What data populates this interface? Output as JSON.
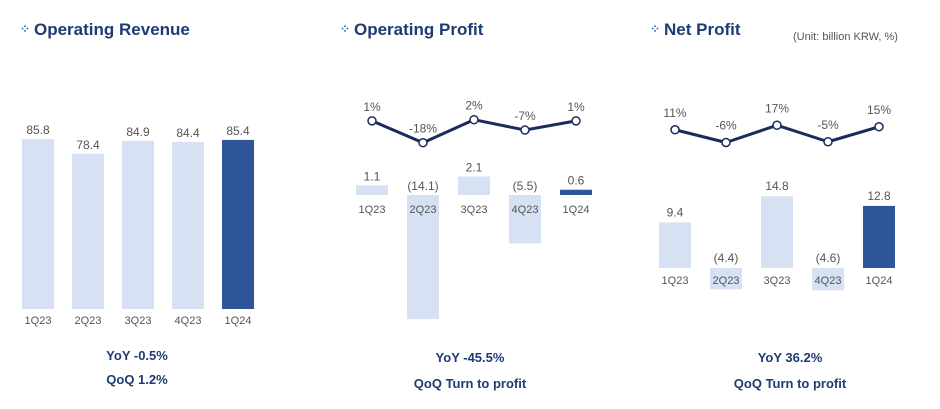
{
  "unit_note": "(Unit: billion KRW, %)",
  "panels": [
    {
      "title": "Operating Revenue",
      "summary": [
        "YoY  -0.5%",
        "QoQ  1.2%"
      ]
    },
    {
      "title": "Operating Profit",
      "summary": [
        "YoY -45.5%",
        "QoQ Turn to profit"
      ]
    },
    {
      "title": "Net Profit",
      "summary": [
        "YoY 36.2%",
        "QoQ  Turn to profit"
      ]
    }
  ],
  "colors": {
    "bar_light": "#d6e1f3",
    "bar_dark": "#2e5597",
    "line": "#1a2c5b",
    "title": "#1f3b73",
    "label": "#555555"
  },
  "chart_data": [
    {
      "type": "bar",
      "title": "Operating Revenue",
      "categories": [
        "1Q23",
        "2Q23",
        "3Q23",
        "4Q23",
        "1Q24"
      ],
      "values": [
        85.8,
        78.4,
        84.9,
        84.4,
        85.4
      ],
      "value_labels": [
        "85.8",
        "78.4",
        "84.9",
        "84.4",
        "85.4"
      ],
      "highlight_index": 4
    },
    {
      "type": "bar",
      "title": "Operating Profit",
      "categories": [
        "1Q23",
        "2Q23",
        "3Q23",
        "4Q23",
        "1Q24"
      ],
      "values": [
        1.1,
        -14.1,
        2.1,
        -5.5,
        0.6
      ],
      "value_labels": [
        "1.1",
        "(14.1)",
        "2.1",
        "(5.5)",
        "0.6"
      ],
      "highlight_index": 4,
      "margin_series": {
        "type": "line",
        "values": [
          1,
          -18,
          2,
          -7,
          1
        ],
        "labels": [
          "1%",
          "-18%",
          "2%",
          "-7%",
          "1%"
        ]
      }
    },
    {
      "type": "bar",
      "title": "Net Profit",
      "categories": [
        "1Q23",
        "2Q23",
        "3Q23",
        "4Q23",
        "1Q24"
      ],
      "values": [
        9.4,
        -4.4,
        14.8,
        -4.6,
        12.8
      ],
      "value_labels": [
        "9.4",
        "(4.4)",
        "14.8",
        "(4.6)",
        "12.8"
      ],
      "highlight_index": 4,
      "margin_series": {
        "type": "line",
        "values": [
          11,
          -6,
          17,
          -5,
          15
        ],
        "labels": [
          "11%",
          "-6%",
          "17%",
          "-5%",
          "15%"
        ]
      }
    }
  ]
}
